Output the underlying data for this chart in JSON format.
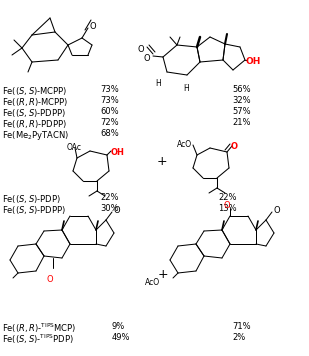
{
  "figsize": [
    3.09,
    3.56
  ],
  "dpi": 100,
  "bg": "#ffffff",
  "top_labels": [
    "Fe(($\\it{S,S}$)-MCPP)",
    "Fe(($\\it{R,R}$)-MCPP)",
    "Fe(($\\it{S,S}$)-PDPP)",
    "Fe(($\\it{R,R}$)-PDPP)",
    "Fe(Me$_2$PyTACN)"
  ],
  "top_lv": [
    "73%",
    "73%",
    "60%",
    "72%",
    "68%"
  ],
  "top_rv": [
    "56%",
    "32%",
    "57%",
    "21%",
    ""
  ],
  "mid_labels": [
    "Fe(($\\it{S,S}$)-PDP)",
    "Fe(($\\it{S,S}$)-PDPP)"
  ],
  "mid_lv": [
    "22%",
    "30%"
  ],
  "mid_rv": [
    "22%",
    "13%"
  ],
  "bot_labels": [
    "Fe(($\\it{R,R}$)-$^{\\rm TIPS}$MCP)",
    "Fe(($\\it{S,S}$)-$^{\\rm TIPS}$PDP)"
  ],
  "bot_lv": [
    "9%",
    "49%"
  ],
  "bot_rv": [
    "71%",
    "2%"
  ]
}
